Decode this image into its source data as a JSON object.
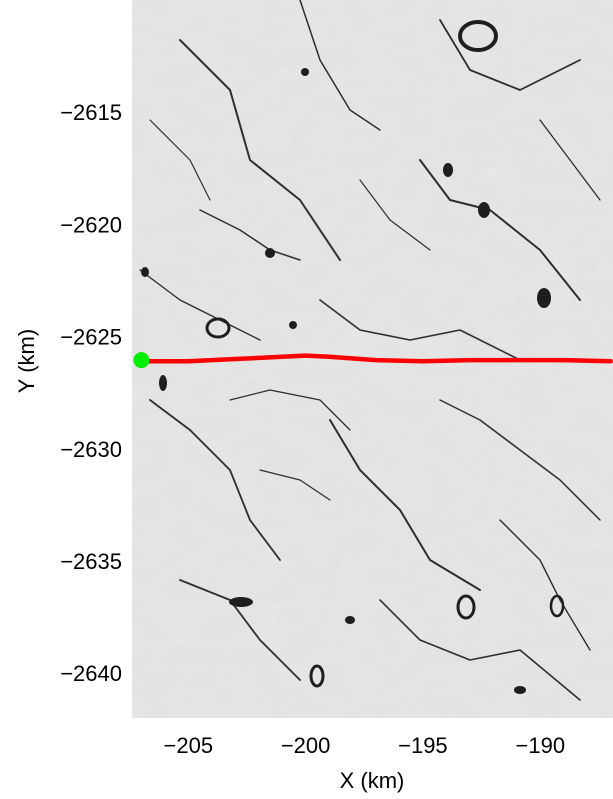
{
  "chart_data": {
    "type": "map",
    "xlabel": "X (km)",
    "ylabel": "Y (km)",
    "xlim": [
      -207.4,
      -186.9
    ],
    "ylim": [
      -2642.0,
      -2610.0
    ],
    "x_ticks": [
      {
        "value": -205,
        "label": "−205"
      },
      {
        "value": -200,
        "label": "−200"
      },
      {
        "value": -195,
        "label": "−195"
      },
      {
        "value": -190,
        "label": "−190"
      }
    ],
    "y_ticks": [
      {
        "value": -2615,
        "label": "−2615"
      },
      {
        "value": -2620,
        "label": "−2620"
      },
      {
        "value": -2625,
        "label": "−2625"
      },
      {
        "value": -2630,
        "label": "−2630"
      },
      {
        "value": -2635,
        "label": "−2635"
      },
      {
        "value": -2640,
        "label": "−2640"
      }
    ],
    "background": "grayscale satellite image of fractured sea ice",
    "track": {
      "color": "#ff0000",
      "x": [
        -206.95,
        -205.0,
        -203.0,
        -201.0,
        -200.0,
        -199.0,
        -197.0,
        -195.0,
        -193.0,
        -191.0,
        -189.0,
        -187.0
      ],
      "y": [
        -2626.1,
        -2626.1,
        -2626.0,
        -2625.9,
        -2625.85,
        -2625.9,
        -2626.05,
        -2626.1,
        -2626.05,
        -2626.05,
        -2626.05,
        -2626.1
      ]
    },
    "start_point": {
      "color": "#00ee00",
      "x": -207.0,
      "y": -2626.05
    }
  }
}
